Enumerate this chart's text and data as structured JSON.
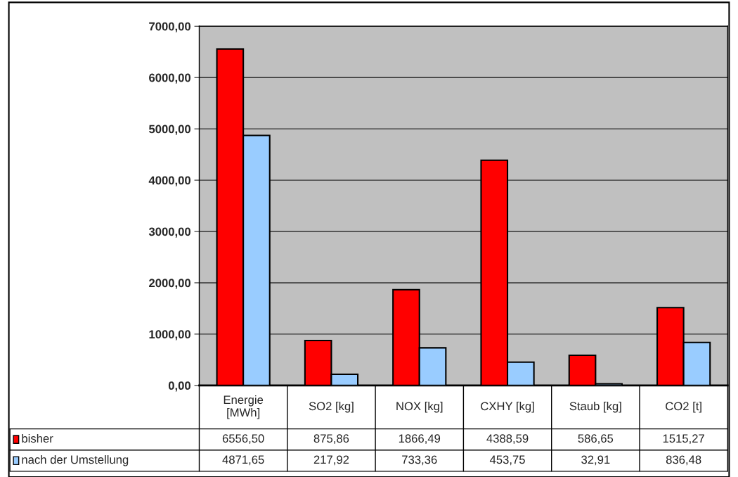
{
  "chart_data": {
    "type": "bar",
    "categories": [
      "Energie\n[MWh]",
      "SO2 [kg]",
      "NOX [kg]",
      "CXHY [kg]",
      "Staub [kg]",
      "CO2 [t]"
    ],
    "series": [
      {
        "name": "bisher",
        "color": "#ff0000",
        "values": [
          6556.5,
          875.86,
          1866.49,
          4388.59,
          586.65,
          1515.27
        ],
        "value_labels": [
          "6556,50",
          "875,86",
          "1866,49",
          "4388,59",
          "586,65",
          "1515,27"
        ]
      },
      {
        "name": "nach der Umstellung",
        "color": "#99ccff",
        "values": [
          4871.65,
          217.92,
          733.36,
          453.75,
          32.91,
          836.48
        ],
        "value_labels": [
          "4871,65",
          "217,92",
          "733,36",
          "453,75",
          "32,91",
          "836,48"
        ]
      }
    ],
    "ylim": [
      0,
      7000
    ],
    "yticks": [
      {
        "value": 0,
        "label": "0,00"
      },
      {
        "value": 1000,
        "label": "1000,00"
      },
      {
        "value": 2000,
        "label": "2000,00"
      },
      {
        "value": 3000,
        "label": "3000,00"
      },
      {
        "value": 4000,
        "label": "4000,00"
      },
      {
        "value": 5000,
        "label": "5000,00"
      },
      {
        "value": 6000,
        "label": "6000,00"
      },
      {
        "value": 7000,
        "label": "7000,00"
      }
    ],
    "grid": "y",
    "legend": "bottom left"
  }
}
